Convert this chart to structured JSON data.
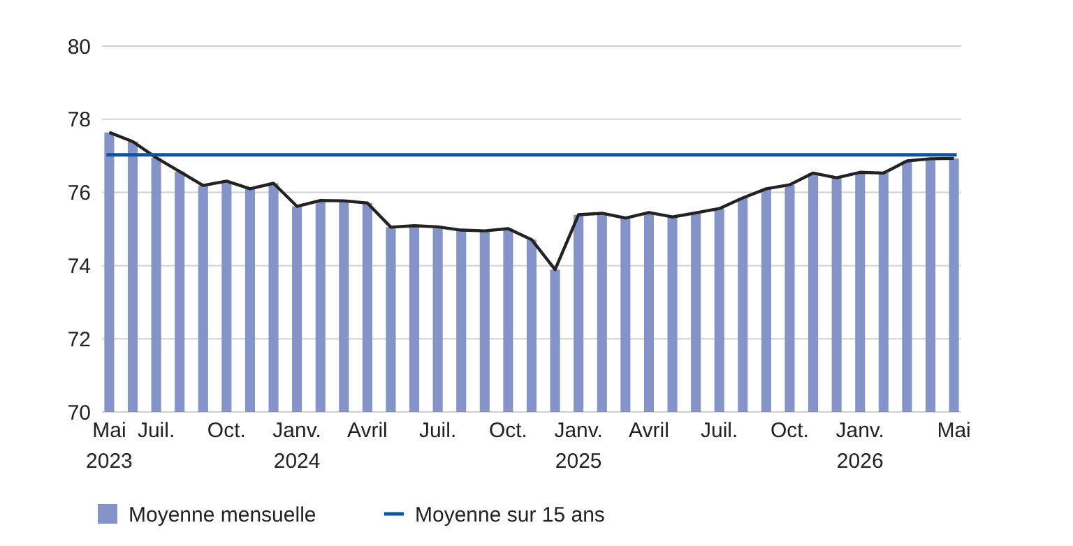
{
  "chart_data": {
    "type": "bar",
    "categories": [
      "Mai\n2023",
      null,
      "Juil.",
      null,
      null,
      "Oct.",
      null,
      null,
      "Janv.\n2024",
      null,
      null,
      "Avril",
      null,
      null,
      "Juil.",
      null,
      null,
      "Oct.",
      null,
      null,
      "Janv.\n2025",
      null,
      null,
      "Avril",
      null,
      null,
      "Juil.",
      null,
      null,
      "Oct.",
      null,
      null,
      "Janv.\n2026",
      null,
      null,
      null,
      "Mai"
    ],
    "series": [
      {
        "name": "Moyenne mensuelle",
        "color": "#8594c8",
        "values": [
          77.64,
          77.39,
          76.95,
          76.57,
          76.19,
          76.31,
          76.1,
          76.25,
          75.62,
          75.78,
          75.77,
          75.71,
          75.05,
          75.09,
          75.06,
          74.97,
          74.95,
          75.01,
          74.71,
          73.89,
          75.39,
          75.43,
          75.3,
          75.45,
          75.33,
          75.44,
          75.56,
          75.85,
          76.1,
          76.21,
          76.53,
          76.4,
          76.55,
          76.53,
          76.86,
          76.92,
          76.93
        ]
      },
      {
        "type": "line",
        "color": "#222222",
        "values": [
          77.64,
          77.39,
          76.95,
          76.57,
          76.19,
          76.31,
          76.1,
          76.25,
          75.62,
          75.78,
          75.77,
          75.71,
          75.05,
          75.09,
          75.06,
          74.97,
          74.95,
          75.01,
          74.71,
          73.89,
          75.39,
          75.43,
          75.3,
          75.45,
          75.33,
          75.44,
          75.56,
          75.85,
          76.1,
          76.21,
          76.53,
          76.4,
          76.55,
          76.53,
          76.86,
          76.92,
          76.93
        ]
      }
    ],
    "ref_lines": [
      {
        "axis": "y",
        "value": 77.03,
        "label": "Moyenne sur 15 ans",
        "color": "#0a56a5"
      }
    ],
    "ylim": [
      70,
      80
    ],
    "yticks": [
      70,
      72,
      74,
      76,
      78,
      80
    ],
    "grid": "y",
    "legend": "bottom",
    "line_style": "solid",
    "marker": "none"
  }
}
